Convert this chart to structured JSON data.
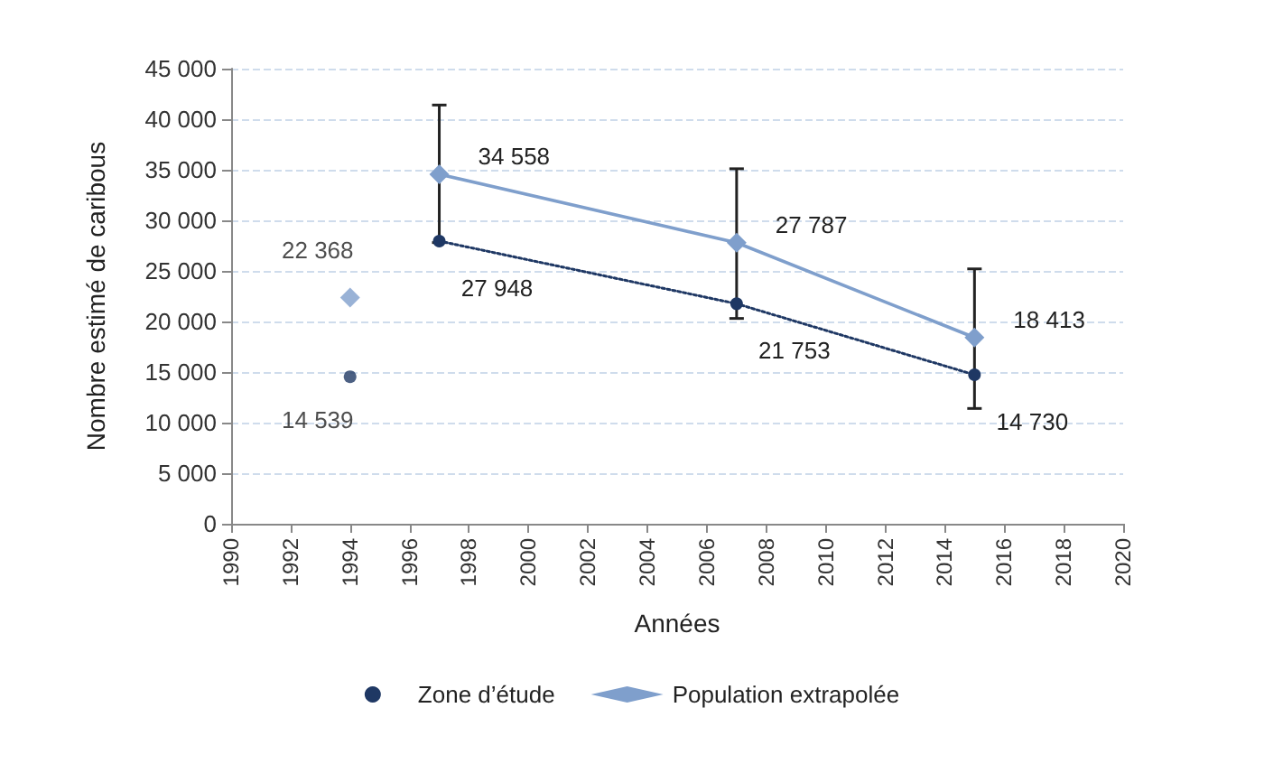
{
  "chart_data": {
    "type": "line",
    "xlabel": "Années",
    "ylabel": "Nombre estimé de caribous",
    "x": [
      1997,
      2007,
      2015
    ],
    "series": [
      {
        "type": "scatter",
        "x": [
          1994
        ],
        "color": "#1f3864",
        "marker": "circle",
        "values": [
          14539
        ],
        "value_labels": [
          "14 539"
        ]
      },
      {
        "type": "scatter",
        "x": [
          1994
        ],
        "color": "#7f9fcc",
        "marker": "diamond",
        "values": [
          22368
        ],
        "value_labels": [
          "22 368"
        ]
      },
      {
        "name": "Zone d’étude",
        "color": "#1f3864",
        "marker": "circle",
        "line_style": "dotted",
        "values": [
          27948,
          21753,
          14730
        ],
        "value_labels": [
          "27 948",
          "21 753",
          "14 730"
        ]
      },
      {
        "name": "Population extrapolée",
        "color": "#7f9fcc",
        "marker": "diamond",
        "line_style": "solid",
        "values": [
          34558,
          27787,
          18413
        ],
        "value_labels": [
          "34 558",
          "27 787",
          "18 413"
        ],
        "errors": [
          [
            27800,
            41400
          ],
          [
            20300,
            35100
          ],
          [
            11400,
            25200
          ]
        ]
      }
    ],
    "xlim": [
      1990,
      2020
    ],
    "xticks": [
      1990,
      1992,
      1994,
      1996,
      1998,
      2000,
      2002,
      2004,
      2006,
      2008,
      2010,
      2012,
      2014,
      2016,
      2018,
      2020
    ],
    "ylim": [
      0,
      45000
    ],
    "yticks": [
      0,
      {
        "value": 5000,
        "label": "5 000"
      },
      {
        "value": 10000,
        "label": "10 000"
      },
      {
        "value": 15000,
        "label": "15 000"
      },
      {
        "value": 20000,
        "label": "20 000"
      },
      {
        "value": 25000,
        "label": "25 000"
      },
      {
        "value": 30000,
        "label": "30 000"
      },
      {
        "value": 35000,
        "label": "35 000"
      },
      {
        "value": 40000,
        "label": "40 000"
      },
      {
        "value": 45000,
        "label": "45 000"
      }
    ],
    "grid": "y",
    "legend": "bottom"
  }
}
